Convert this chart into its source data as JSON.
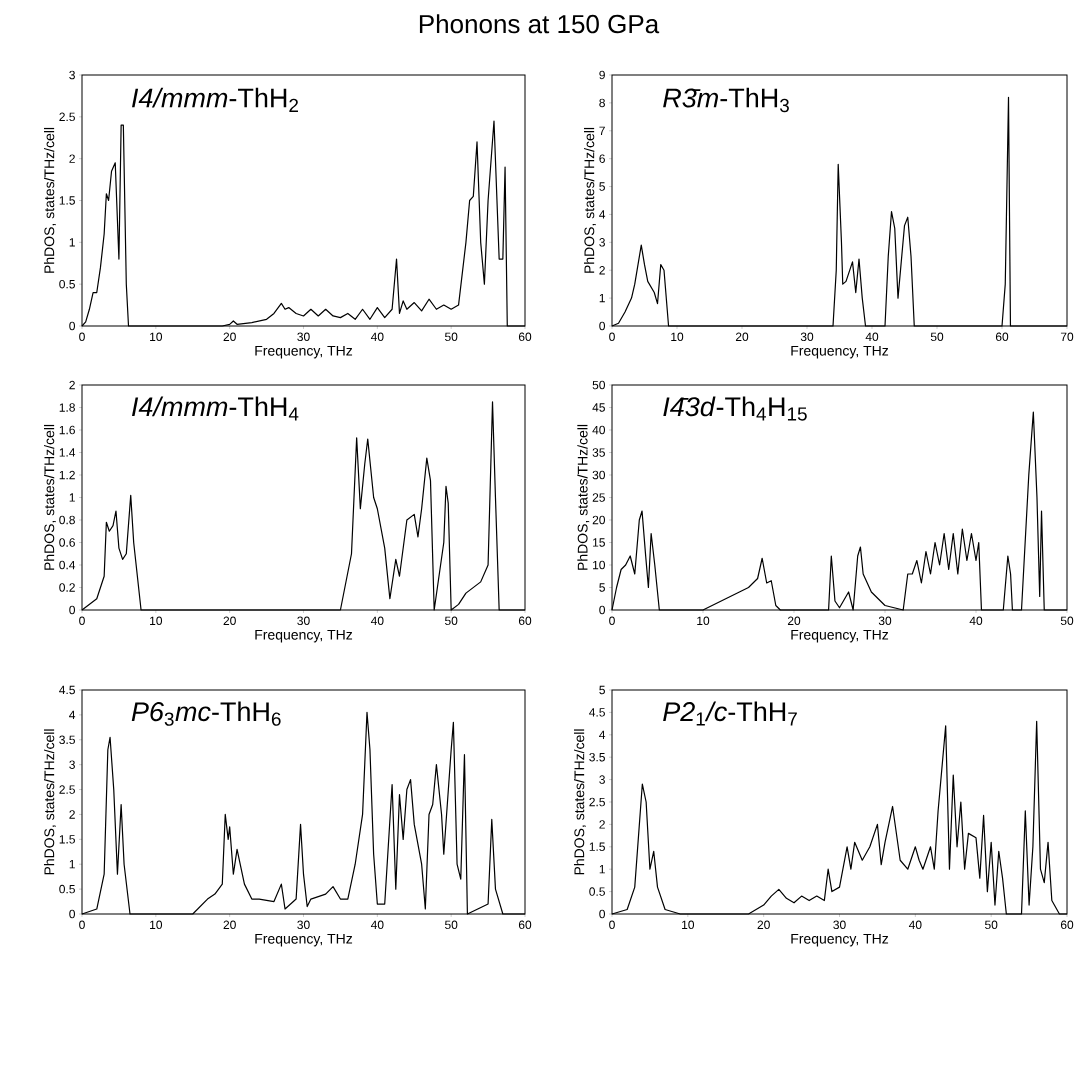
{
  "chart_data": [
    {
      "type": "line",
      "title": "*I4/mmm*-ThH$_{2}$",
      "annotations": [
        "Phonons at 150 GPa"
      ],
      "xlabel": "Frequency, THz",
      "ylabel": "PhDOS, states/THz/cell",
      "xlim": [
        0,
        60
      ],
      "ylim": [
        0,
        3
      ],
      "xticks": [
        0,
        10,
        20,
        30,
        40,
        50,
        60
      ],
      "yticks": [
        0,
        0.5,
        1,
        1.5,
        2,
        2.5,
        3
      ],
      "line_style": "solid",
      "x": [
        0,
        0.5,
        1,
        1.5,
        2,
        2.5,
        3,
        3.3,
        3.6,
        4,
        4.5,
        5,
        5.3,
        5.6,
        6,
        6.3,
        19,
        20,
        20.5,
        21,
        23,
        25,
        26,
        27,
        27.5,
        28,
        29,
        30,
        31,
        32,
        33,
        34,
        35,
        36,
        37,
        38,
        39,
        40,
        41,
        42,
        42.6,
        43,
        43.5,
        44,
        45,
        46,
        47,
        48,
        49,
        50,
        51,
        52,
        52.5,
        53,
        53.5,
        54,
        54.5,
        55,
        55.8,
        56.5,
        57,
        57.3,
        57.6,
        60
      ],
      "series": [
        {
          "color": "#000000",
          "values": [
            0,
            0.05,
            0.2,
            0.4,
            0.4,
            0.7,
            1.1,
            1.58,
            1.5,
            1.85,
            1.95,
            0.8,
            2.4,
            2.4,
            0.5,
            0,
            0,
            0.02,
            0.06,
            0.02,
            0.04,
            0.08,
            0.15,
            0.27,
            0.2,
            0.22,
            0.15,
            0.12,
            0.2,
            0.12,
            0.2,
            0.12,
            0.1,
            0.15,
            0.08,
            0.2,
            0.08,
            0.22,
            0.1,
            0.2,
            0.8,
            0.15,
            0.3,
            0.2,
            0.28,
            0.18,
            0.32,
            0.2,
            0.25,
            0.2,
            0.25,
            1.0,
            1.5,
            1.55,
            2.2,
            1.0,
            0.5,
            1.5,
            2.45,
            0.8,
            0.8,
            1.9,
            0,
            0
          ]
        }
      ]
    },
    {
      "type": "line",
      "title": "*R3̄m*-ThH$_{3}$",
      "xlabel": "Frequency, THz",
      "ylabel": "PhDOS, states/THz/cell",
      "xlim": [
        0,
        70
      ],
      "ylim": [
        0,
        9
      ],
      "xticks": [
        0,
        10,
        20,
        30,
        40,
        50,
        60,
        70
      ],
      "yticks": [
        0,
        1,
        2,
        3,
        4,
        5,
        6,
        7,
        8,
        9
      ],
      "line_style": "solid",
      "x": [
        0,
        1,
        2,
        3,
        3.5,
        4.5,
        5,
        5.5,
        6.5,
        7,
        7.5,
        8,
        8.7,
        34,
        34.5,
        34.8,
        35.3,
        35.5,
        36,
        37,
        37.5,
        38,
        38.5,
        39,
        42,
        42.5,
        43,
        43.5,
        44,
        45,
        45.5,
        46,
        46.5,
        60,
        60.5,
        61,
        61.3,
        70
      ],
      "series": [
        {
          "color": "#000000",
          "values": [
            0,
            0.1,
            0.5,
            1.0,
            1.5,
            2.9,
            2.2,
            1.6,
            1.2,
            0.8,
            2.2,
            2.0,
            0,
            0,
            2.0,
            5.8,
            3.0,
            1.5,
            1.6,
            2.3,
            1.2,
            2.4,
            1.0,
            0,
            0,
            2.5,
            4.1,
            3.5,
            1.0,
            3.6,
            3.9,
            2.5,
            0,
            0,
            1.5,
            8.2,
            0,
            0
          ]
        }
      ]
    },
    {
      "type": "line",
      "title": "*I4/mmm*-ThH$_{4}$",
      "xlabel": "Frequency, THz",
      "ylabel": "PhDOS, states/THz/cell",
      "xlim": [
        0,
        60
      ],
      "ylim": [
        0,
        2
      ],
      "xticks": [
        0,
        10,
        20,
        30,
        40,
        50,
        60
      ],
      "yticks": [
        0,
        0.2,
        0.4,
        0.6,
        0.8,
        1,
        1.2,
        1.4,
        1.6,
        1.8,
        2
      ],
      "line_style": "solid",
      "x": [
        0,
        2,
        3,
        3.3,
        3.7,
        4.2,
        4.6,
        5,
        5.5,
        6,
        6.6,
        7,
        8,
        35,
        36.5,
        37.2,
        37.7,
        38.3,
        38.7,
        39.5,
        40,
        41,
        41.7,
        42.5,
        43,
        44,
        45,
        45.5,
        46,
        46.7,
        47.2,
        47.7,
        49,
        49.3,
        49.6,
        50,
        51,
        52,
        54,
        55,
        55.6,
        56,
        56.5,
        60
      ],
      "series": [
        {
          "color": "#000000",
          "values": [
            0,
            0.1,
            0.3,
            0.78,
            0.7,
            0.75,
            0.88,
            0.55,
            0.45,
            0.5,
            1.02,
            0.6,
            0,
            0,
            0.5,
            1.53,
            0.9,
            1.3,
            1.52,
            1.0,
            0.9,
            0.55,
            0.1,
            0.45,
            0.3,
            0.8,
            0.85,
            0.65,
            0.9,
            1.35,
            1.15,
            0,
            0.6,
            1.1,
            0.95,
            0,
            0.05,
            0.15,
            0.25,
            0.4,
            1.85,
            1.0,
            0,
            0
          ]
        }
      ]
    },
    {
      "type": "line",
      "title": "*I4̄3d*-Th$_{4}$H$_{15}$",
      "xlabel": "Frequency, THz",
      "ylabel": "PhDOS, states/THz/cell",
      "xlim": [
        0,
        50
      ],
      "ylim": [
        0,
        50
      ],
      "xticks": [
        0,
        10,
        20,
        30,
        40,
        50
      ],
      "yticks": [
        0,
        5,
        10,
        15,
        20,
        25,
        30,
        35,
        40,
        45,
        50
      ],
      "line_style": "solid",
      "x": [
        0,
        0.5,
        1,
        1.5,
        2,
        2.5,
        3,
        3.3,
        3.7,
        4,
        4.3,
        4.7,
        5.2,
        10,
        11,
        12,
        13,
        14,
        15,
        15.5,
        16,
        16.5,
        17,
        17.5,
        18,
        18.5,
        23.8,
        24.1,
        24.5,
        25,
        26,
        26.5,
        27,
        27.3,
        27.6,
        28.5,
        30,
        32,
        32.5,
        33,
        33.5,
        34,
        34.5,
        35,
        35.5,
        36,
        36.5,
        37,
        37.5,
        38,
        38.5,
        39,
        39.5,
        40,
        40.3,
        40.6,
        43,
        43.5,
        43.8,
        44,
        45,
        45.8,
        46.3,
        46.7,
        47,
        47.2,
        47.5,
        50
      ],
      "series": [
        {
          "color": "#000000",
          "values": [
            0,
            5,
            9,
            10,
            12,
            8,
            20,
            22,
            12,
            5,
            17,
            10,
            0,
            0,
            1,
            2,
            3,
            4,
            5,
            6,
            7,
            11.5,
            6,
            6.5,
            1,
            0,
            0,
            12,
            2,
            0.5,
            4,
            0,
            12,
            14,
            8,
            4,
            1,
            0,
            8,
            8,
            11,
            6,
            13,
            8,
            15,
            10,
            17,
            9,
            17,
            8,
            18,
            11,
            17,
            11,
            15,
            0,
            0,
            12,
            8,
            0,
            0,
            30,
            44,
            25,
            3,
            22,
            0,
            0
          ]
        }
      ]
    },
    {
      "type": "line",
      "title": "*P6*$_{3}$*mc*-ThH$_{6}$",
      "xlabel": "Frequency, THz",
      "ylabel": "PhDOS, states/THz/cell",
      "xlim": [
        0,
        60
      ],
      "ylim": [
        0,
        4.5
      ],
      "xticks": [
        0,
        10,
        20,
        30,
        40,
        50,
        60
      ],
      "yticks": [
        0,
        0.5,
        1,
        1.5,
        2,
        2.5,
        3,
        3.5,
        4,
        4.5
      ],
      "line_style": "solid",
      "x": [
        0,
        2,
        3,
        3.5,
        3.8,
        4.3,
        4.8,
        5.3,
        5.7,
        6.5,
        15,
        17,
        18,
        19,
        19.4,
        19.8,
        20,
        20.5,
        21,
        22,
        23,
        24,
        26,
        27,
        27.5,
        29,
        29.6,
        30,
        30.5,
        31,
        33,
        34,
        35,
        36,
        37,
        38,
        38.6,
        39,
        39.5,
        40,
        41,
        42,
        42.5,
        43,
        43.5,
        44,
        44.5,
        45,
        46,
        46.5,
        47,
        47.5,
        48,
        48.7,
        49,
        50,
        50.3,
        50.8,
        51.3,
        51.8,
        52.2,
        55,
        55.5,
        56,
        57,
        60
      ],
      "series": [
        {
          "color": "#000000",
          "values": [
            0,
            0.1,
            0.8,
            3.3,
            3.55,
            2.5,
            0.8,
            2.2,
            1.0,
            0,
            0,
            0.3,
            0.4,
            0.6,
            2.0,
            1.5,
            1.75,
            0.8,
            1.3,
            0.6,
            0.3,
            0.3,
            0.25,
            0.6,
            0.1,
            0.3,
            1.8,
            0.8,
            0.15,
            0.3,
            0.4,
            0.55,
            0.3,
            0.3,
            1.0,
            2.0,
            4.05,
            3.3,
            1.2,
            0.2,
            0.2,
            2.6,
            0.5,
            2.4,
            1.5,
            2.5,
            2.7,
            1.8,
            1.0,
            0.1,
            2.0,
            2.2,
            3.0,
            2.0,
            1.2,
            3.3,
            3.85,
            1.0,
            0.7,
            3.2,
            0,
            0.2,
            1.9,
            0.5,
            0,
            0
          ]
        }
      ]
    },
    {
      "type": "line",
      "title": "*P2*$_{1}$*/c*-ThH$_{7}$",
      "xlabel": "Frequency, THz",
      "ylabel": "PhDOS, states/THz/cell",
      "xlim": [
        0,
        60
      ],
      "ylim": [
        0,
        5
      ],
      "xticks": [
        0,
        10,
        20,
        30,
        40,
        50,
        60
      ],
      "yticks": [
        0,
        0.5,
        1,
        1.5,
        2,
        2.5,
        3,
        3.5,
        4,
        4.5,
        5
      ],
      "line_style": "solid",
      "x": [
        0,
        2,
        3,
        4,
        4.5,
        5,
        5.5,
        6,
        7,
        9,
        18,
        20,
        21,
        22,
        23,
        24,
        25,
        26,
        27,
        28,
        28.5,
        29,
        30,
        31,
        31.5,
        32,
        33,
        34,
        35,
        35.5,
        36,
        37,
        38,
        39,
        40,
        40.5,
        41,
        42,
        42.5,
        43,
        44,
        44.5,
        45,
        45.5,
        46,
        46.5,
        47,
        48,
        48.5,
        49,
        49.5,
        50,
        50.5,
        51,
        51.5,
        52,
        54,
        54.5,
        55,
        55.5,
        56,
        56.5,
        57,
        57.5,
        58,
        59,
        60
      ],
      "series": [
        {
          "color": "#000000",
          "values": [
            0,
            0.1,
            0.6,
            2.9,
            2.5,
            1.0,
            1.4,
            0.6,
            0.1,
            0,
            0,
            0.2,
            0.4,
            0.55,
            0.35,
            0.25,
            0.4,
            0.3,
            0.4,
            0.3,
            1.0,
            0.5,
            0.6,
            1.5,
            1.0,
            1.6,
            1.2,
            1.5,
            2.0,
            1.1,
            1.6,
            2.4,
            1.2,
            1.0,
            1.5,
            1.2,
            1.0,
            1.5,
            1.0,
            2.3,
            4.2,
            1.0,
            3.1,
            1.5,
            2.5,
            1.0,
            1.8,
            1.7,
            0.8,
            2.2,
            0.5,
            1.6,
            0.2,
            1.4,
            0.8,
            0,
            0,
            2.3,
            0.2,
            1.5,
            4.3,
            1.0,
            0.7,
            1.6,
            0.3,
            0,
            0
          ]
        }
      ]
    }
  ]
}
